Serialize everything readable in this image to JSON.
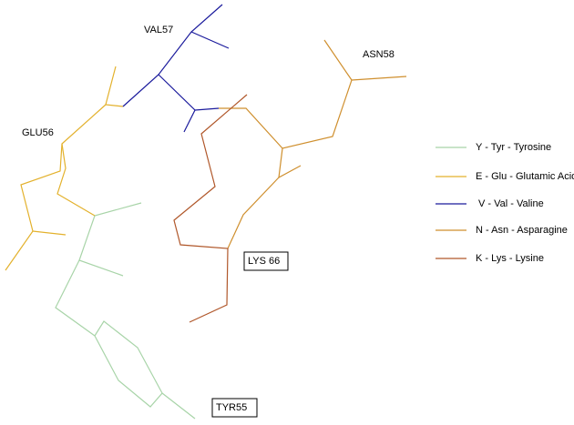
{
  "residue_labels": [
    "VAL57",
    "ASN58",
    "GLU56",
    "LYS 66",
    "TYR55"
  ],
  "legend": [
    "Y - Tyr - Tyrosine",
    "E - Glu - Glutamic Acid",
    "V - Val - Valine",
    "N - Asn - Asparagine",
    "K - Lys - Lysine"
  ]
}
